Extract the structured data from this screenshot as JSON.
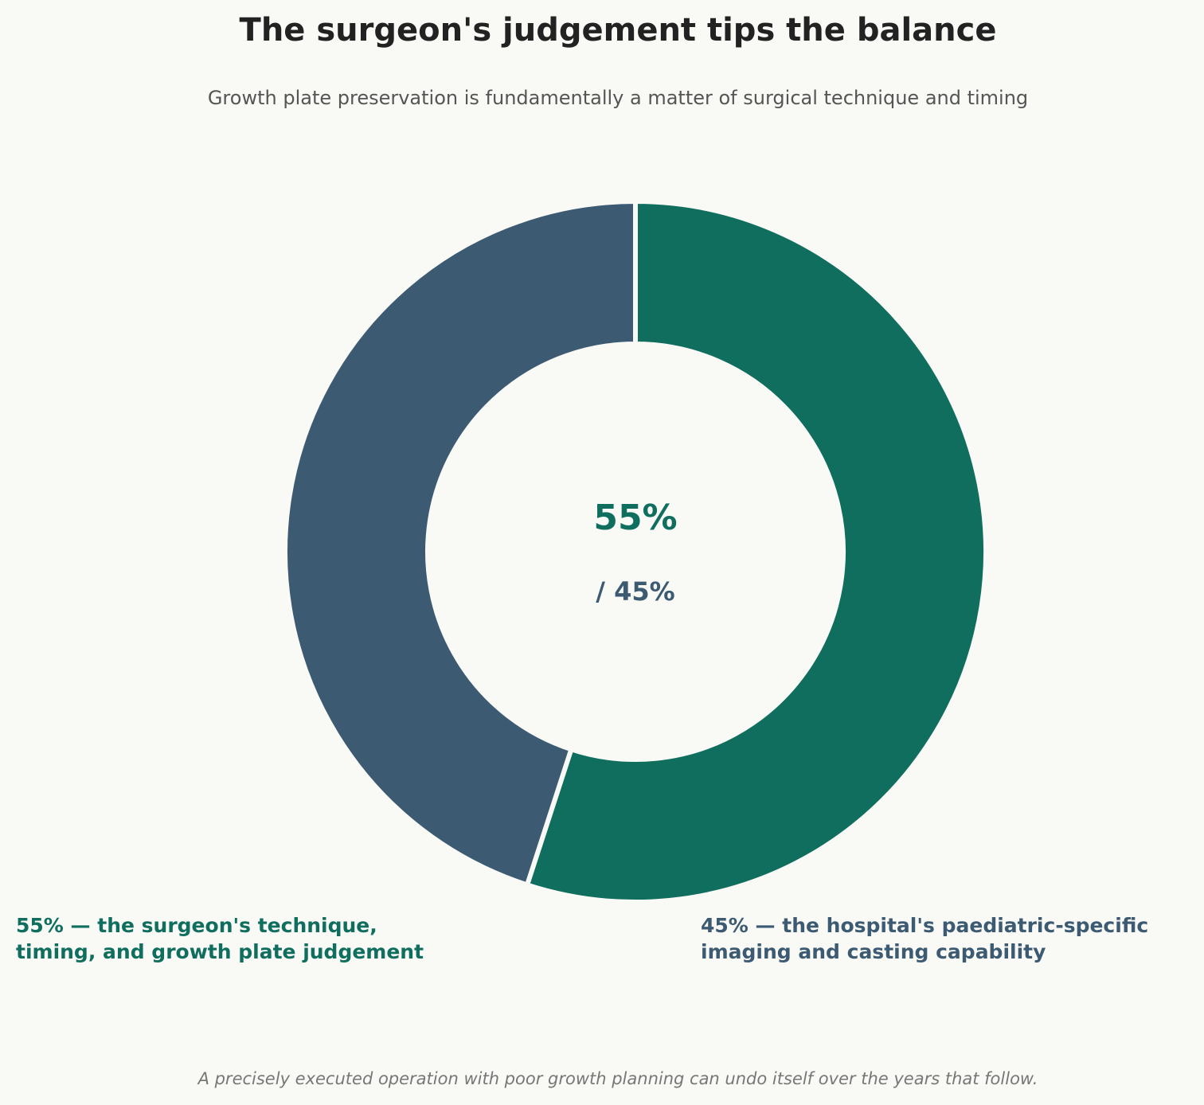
{
  "chart_data": {
    "type": "donut",
    "title": "The surgeon's judgement tips the balance",
    "subtitle": "Growth plate preservation is fundamentally a matter of surgical technique and timing",
    "values": [
      55,
      45
    ],
    "colors": [
      "#0f6e5d",
      "#3d5a73"
    ],
    "labels": [
      [
        "55% — the surgeon's technique,",
        "timing, and growth plate judgement"
      ],
      [
        "45% — the hospital's paediatric-specific",
        "imaging and casting capability"
      ]
    ],
    "center_label": "55%",
    "center_sublabel": "/ 45%",
    "footnote": "A precisely executed operation with poor growth planning can undo itself over the years that follow."
  }
}
